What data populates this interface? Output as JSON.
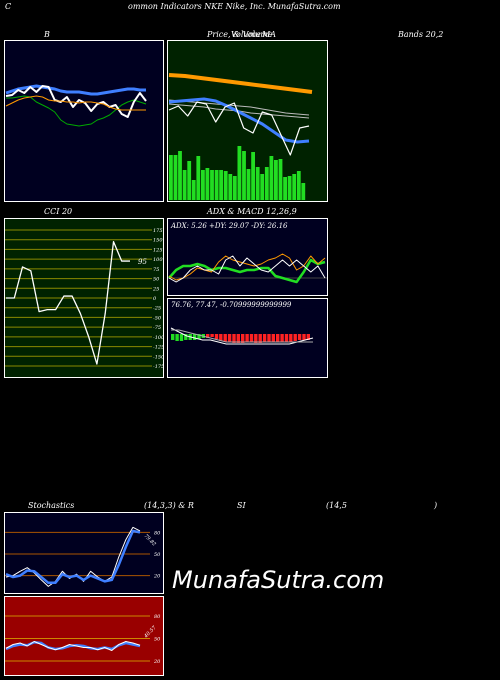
{
  "header": {
    "prefix": "C",
    "title": "ommon  Indicators NKE Nike, Inc. MunafaSutra.com"
  },
  "watermark": "MunafaSutra.com",
  "colors": {
    "background": "#000000",
    "panel_navy": "#000020",
    "panel_green": "#002200",
    "panel_red": "#990000",
    "grid_brown": "#aa5500",
    "grid_olive": "#8a8a00",
    "blue": "#3f7fff",
    "green": "#22dd22",
    "orange": "#ff9900",
    "white": "#ffffff"
  },
  "chart_data": [
    {
      "name": "bollinger",
      "type": "line",
      "title_left": "B",
      "title_right": "Bands 20,2",
      "series": [
        {
          "role": "upper",
          "color": "#00aa00",
          "values": [
            58,
            58,
            57,
            56,
            57,
            62,
            65,
            68,
            72,
            80,
            84,
            85,
            86,
            85,
            84,
            80,
            78,
            75,
            70,
            65,
            62,
            60,
            62,
            64
          ]
        },
        {
          "role": "middle",
          "color": "#3f7fff",
          "values": [
            53,
            51,
            49,
            48,
            47,
            46,
            47,
            48,
            49,
            51,
            52,
            52,
            52,
            53,
            54,
            54,
            53,
            52,
            51,
            50,
            49,
            49,
            50,
            50
          ]
        },
        {
          "role": "price",
          "color": "#ffffff",
          "values": [
            56,
            55,
            50,
            53,
            47,
            52,
            46,
            47,
            60,
            62,
            57,
            67,
            60,
            63,
            71,
            64,
            62,
            67,
            65,
            74,
            77,
            62,
            53,
            61
          ]
        },
        {
          "role": "lower",
          "color": "#ff9900",
          "values": [
            66,
            63,
            60,
            58,
            57,
            56,
            57,
            60,
            61,
            61,
            62,
            62,
            63,
            62,
            62,
            63,
            64,
            67,
            69,
            70,
            70,
            70,
            70,
            70
          ]
        }
      ]
    },
    {
      "name": "price_volume_ma",
      "type": "line",
      "title_left": "Price,",
      "title_mid": "Volume",
      "title_overlap": "& Volume",
      "title_right": "MA",
      "series": [
        {
          "role": "long_ma",
          "color": "#ff9900",
          "values": [
            35,
            36,
            38,
            40,
            42,
            44,
            46,
            48,
            50,
            52
          ]
        },
        {
          "role": "ma_gray1",
          "color": "#bbbbbb",
          "values": [
            60,
            61,
            62,
            63,
            64,
            65,
            66,
            67,
            69,
            71,
            73,
            74,
            75
          ]
        },
        {
          "role": "ma_gray2",
          "color": "#bbbbbb",
          "values": [
            64,
            65,
            66,
            67,
            69,
            70,
            71,
            73,
            74,
            75,
            76,
            77,
            78
          ]
        },
        {
          "role": "ma_blue",
          "color": "#3f7fff",
          "values": [
            62,
            61,
            60,
            59,
            61,
            66,
            72,
            78,
            84,
            92,
            100,
            102,
            101
          ]
        },
        {
          "role": "price",
          "color": "#ffffff",
          "values": [
            70,
            66,
            76,
            62,
            64,
            82,
            67,
            63,
            88,
            93,
            72,
            75,
            95,
            115,
            88,
            86
          ]
        }
      ],
      "volume_bars": [
        45,
        45,
        49,
        30,
        39,
        20,
        44,
        30,
        32,
        30,
        30,
        30,
        29,
        26,
        24,
        54,
        49,
        31,
        48,
        33,
        26,
        33,
        44,
        40,
        41,
        23,
        24,
        26,
        29,
        17
      ]
    },
    {
      "name": "cci",
      "type": "line",
      "title": "CCI 20",
      "value_label": "95",
      "yticks": [
        175,
        150,
        125,
        100,
        75,
        50,
        25,
        0,
        -25,
        -50,
        -75,
        -100,
        -125,
        -150,
        -175
      ],
      "values": [
        0,
        0,
        80,
        70,
        -35,
        -30,
        -30,
        5,
        5,
        -40,
        -100,
        -170,
        -40,
        145,
        95,
        95
      ]
    },
    {
      "name": "adx",
      "type": "line",
      "title": "ADX  & MACD 12,26,9",
      "label": "ADX: 5.26  +DY: 29.07 -DY: 26.16",
      "series": [
        {
          "role": "adx_green",
          "color": "#22dd22",
          "values": [
            60,
            52,
            48,
            48,
            46,
            48,
            52,
            50,
            50,
            52,
            54,
            52,
            52,
            50,
            50,
            58,
            60,
            62,
            64,
            54,
            42,
            46,
            44
          ]
        },
        {
          "role": "plus_di_orange",
          "color": "#ff9900",
          "values": [
            58,
            62,
            60,
            56,
            50,
            52,
            54,
            44,
            38,
            42,
            44,
            46,
            48,
            46,
            42,
            40,
            36,
            40,
            52,
            48,
            38,
            46,
            40
          ]
        },
        {
          "role": "minus_di_white",
          "color": "#ffffff",
          "values": [
            60,
            64,
            60,
            52,
            48,
            52,
            52,
            56,
            42,
            38,
            48,
            40,
            46,
            52,
            54,
            48,
            42,
            48,
            42,
            48,
            54,
            48,
            60
          ]
        }
      ]
    },
    {
      "name": "macd",
      "type": "line",
      "label": "76.76,  77.47,  -0.70999999999999",
      "series": [
        {
          "role": "macd_white",
          "color": "#ffffff",
          "values": [
            30,
            34,
            38,
            40,
            42,
            42,
            44,
            46,
            46,
            46,
            46,
            46,
            46,
            46,
            46,
            46,
            44,
            42,
            40
          ]
        },
        {
          "role": "signal_gray",
          "color": "#aaaaaa",
          "values": [
            32,
            32,
            34,
            36,
            38,
            40,
            42,
            44,
            44,
            44,
            44,
            44,
            44,
            44,
            44,
            44,
            44,
            44,
            44
          ]
        }
      ],
      "histogram": [
        6,
        7,
        7,
        6,
        6,
        6,
        5,
        4,
        4,
        3,
        5,
        7,
        8,
        8,
        9,
        9,
        9,
        8,
        8,
        9,
        9,
        8,
        8,
        8,
        8,
        8,
        8,
        8,
        7,
        6,
        6,
        6
      ]
    },
    {
      "name": "stochastics",
      "type": "line",
      "title_left": "Stochastics",
      "title_mid": "(14,3,3) & R",
      "title_mid2": "SI",
      "title_right": "(14,5",
      "title_end": ")",
      "yticks": [
        80,
        50,
        20
      ],
      "value_label": "79.82",
      "series": [
        {
          "role": "k_white",
          "color": "#ffffff",
          "values": [
            18,
            20,
            26,
            31,
            24,
            14,
            5,
            12,
            26,
            16,
            22,
            12,
            26,
            18,
            12,
            18,
            46,
            70,
            87,
            82
          ]
        },
        {
          "role": "d_blue",
          "color": "#3f7fff",
          "values": [
            22,
            18,
            20,
            27,
            26,
            18,
            10,
            10,
            22,
            18,
            20,
            14,
            20,
            16,
            12,
            14,
            35,
            60,
            82,
            80
          ]
        }
      ]
    },
    {
      "name": "rsi",
      "type": "line",
      "yticks": [
        80,
        50,
        20
      ],
      "value_label": "40.57",
      "series": [
        {
          "role": "rsi_blue",
          "color": "#3f7fff",
          "values": [
            36,
            40,
            42,
            41,
            45,
            44,
            38,
            36,
            37,
            40,
            41,
            40,
            37,
            36,
            38,
            36,
            41,
            44,
            42,
            40
          ]
        },
        {
          "role": "rsi_white",
          "color": "#ffffff",
          "values": [
            37,
            42,
            44,
            40,
            46,
            42,
            38,
            35,
            38,
            42,
            40,
            38,
            38,
            35,
            38,
            34,
            42,
            46,
            44,
            41
          ]
        }
      ]
    }
  ]
}
